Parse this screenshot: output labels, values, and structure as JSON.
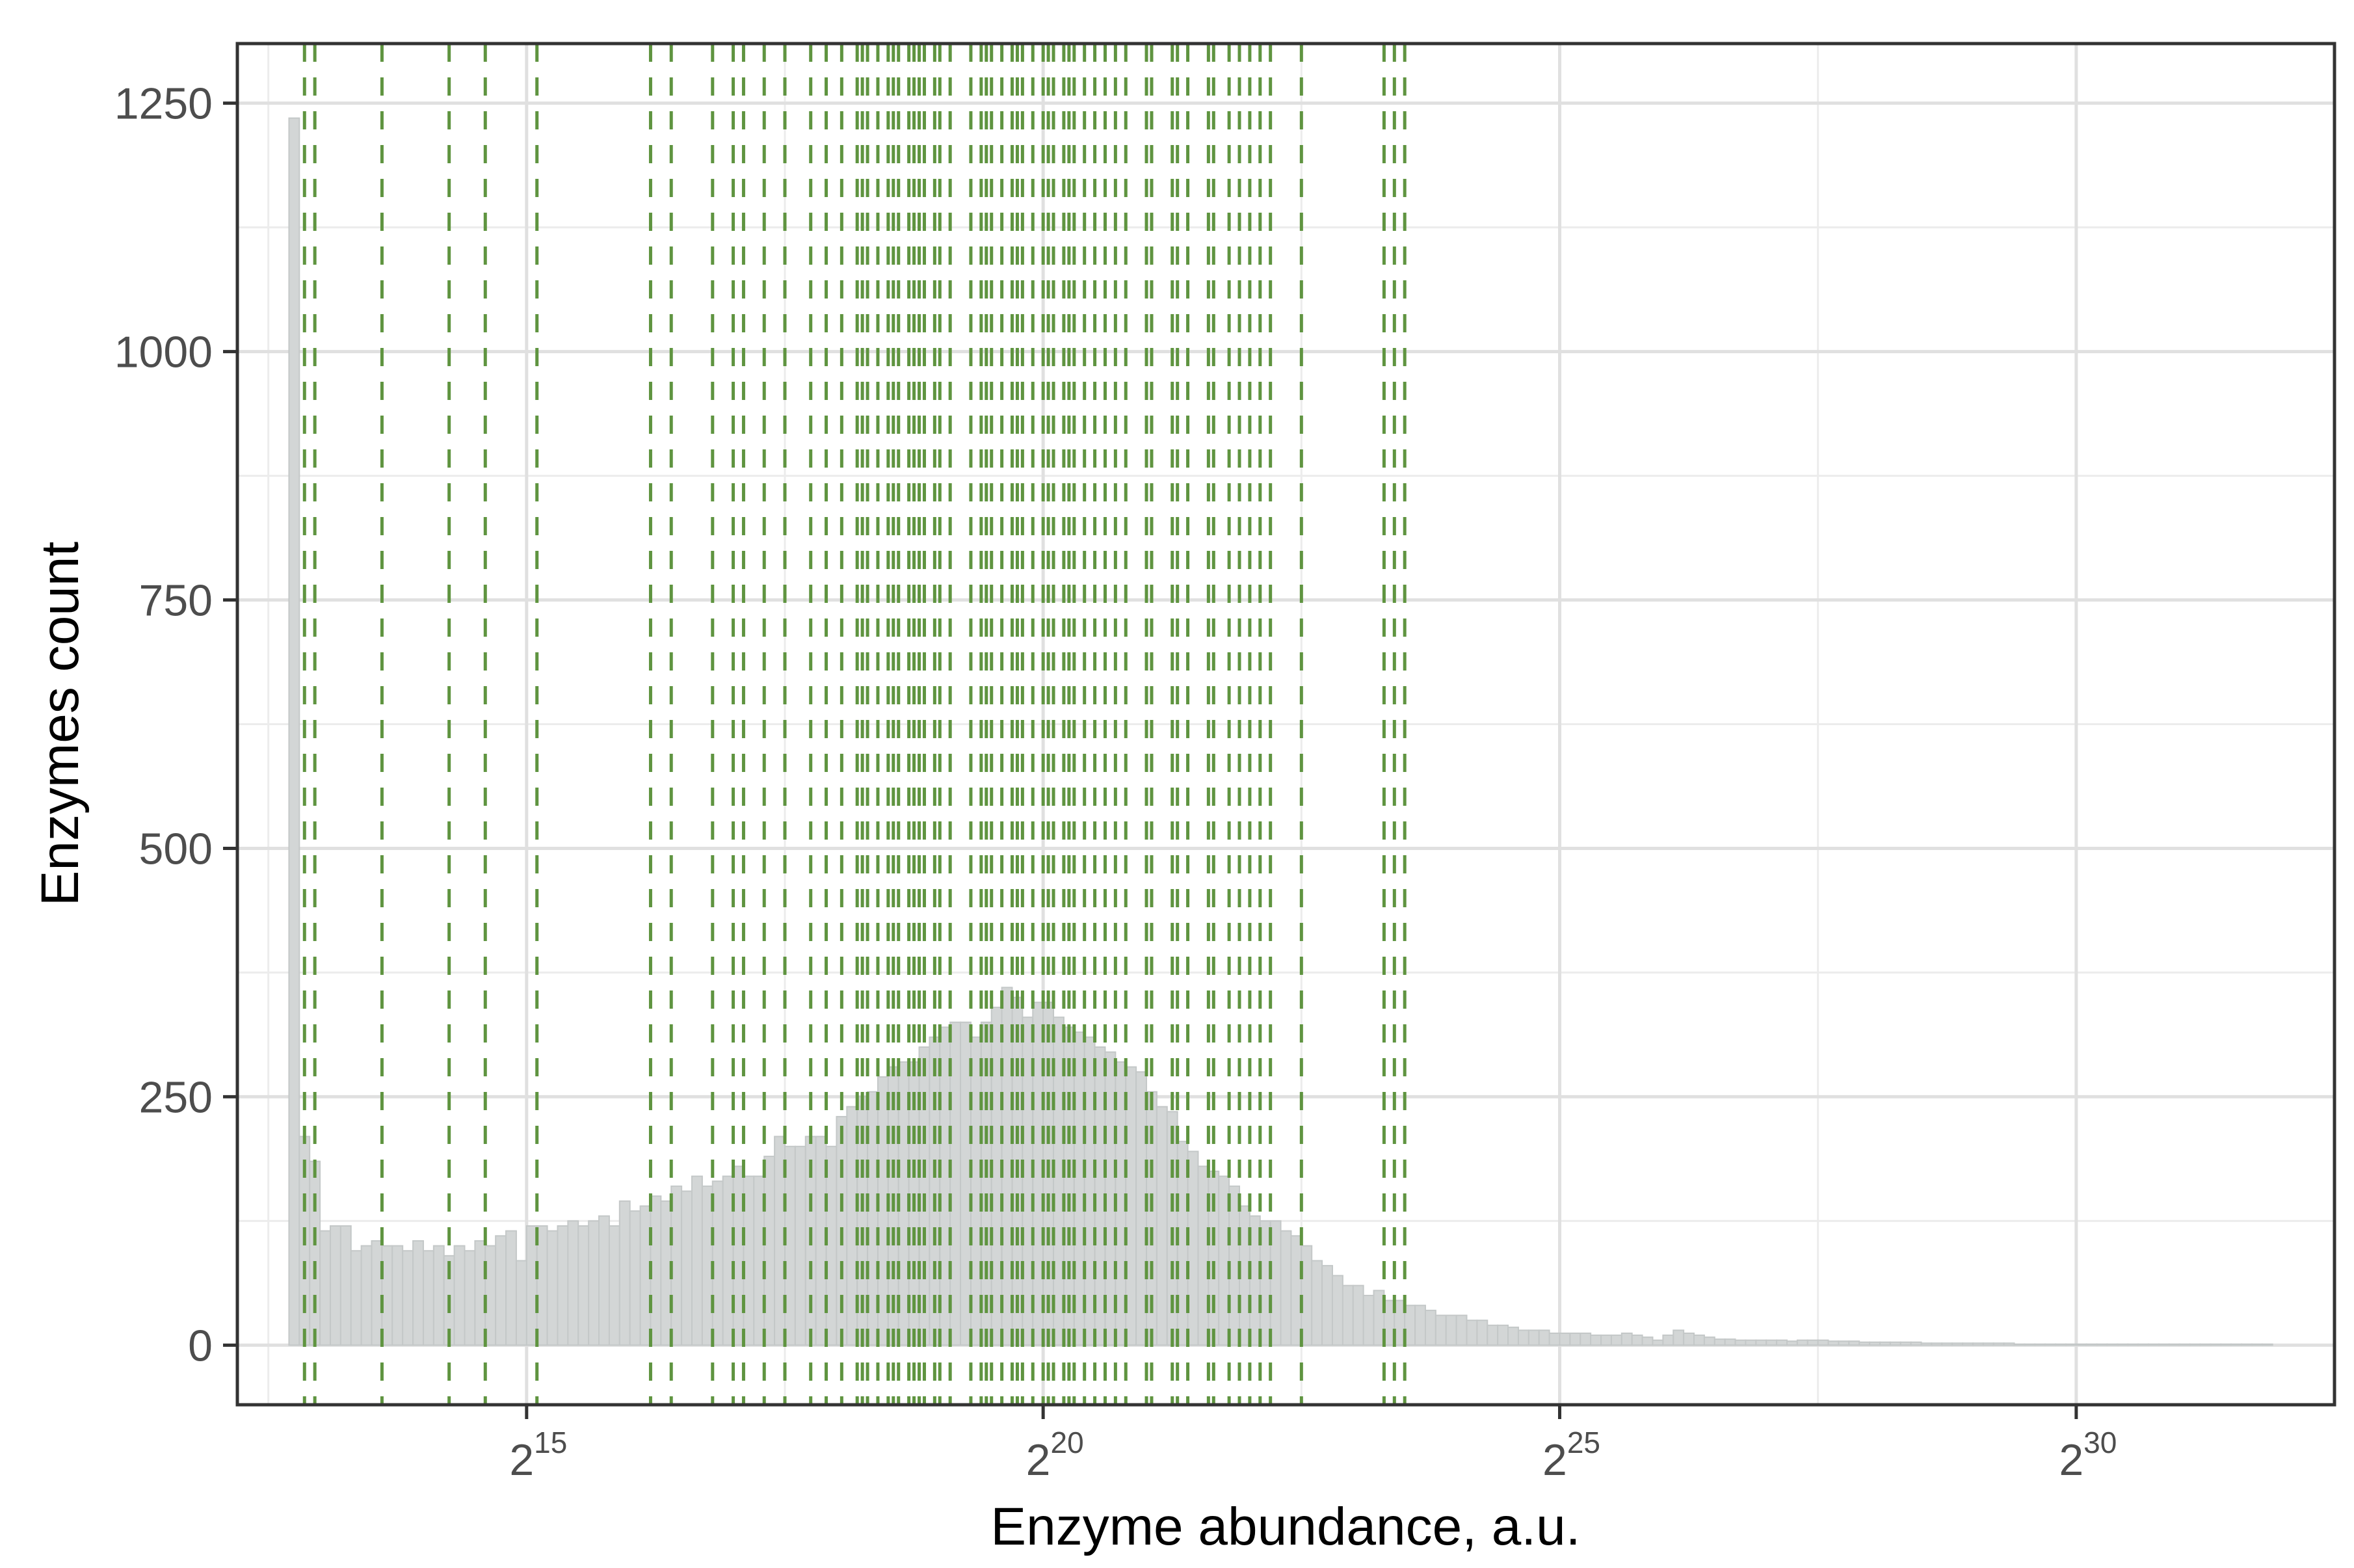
{
  "chart_data": {
    "type": "bar",
    "subtype": "histogram",
    "xlabel": "Enzyme abundance, a.u.",
    "ylabel": "Enzymes count",
    "x_scale": "log2",
    "xlim": [
      12.2,
      32.5
    ],
    "ylim": [
      -60,
      1310
    ],
    "grid": true,
    "x_ticks": [
      {
        "base": "2",
        "exp": "15",
        "value": 15
      },
      {
        "base": "2",
        "exp": "20",
        "value": 20
      },
      {
        "base": "2",
        "exp": "25",
        "value": 25
      },
      {
        "base": "2",
        "exp": "30",
        "value": 30
      }
    ],
    "y_ticks": [
      {
        "label": "0",
        "value": 0
      },
      {
        "label": "250",
        "value": 250
      },
      {
        "label": "500",
        "value": 500
      },
      {
        "label": "750",
        "value": 750
      },
      {
        "label": "1000",
        "value": 1000
      },
      {
        "label": "1250",
        "value": 1250
      }
    ],
    "bin_start_log2": 12.7,
    "bin_width_log2": 0.1,
    "bin_counts": [
      1235,
      210,
      185,
      115,
      120,
      120,
      95,
      100,
      105,
      100,
      100,
      95,
      105,
      95,
      100,
      90,
      100,
      95,
      105,
      100,
      110,
      115,
      85,
      120,
      120,
      115,
      120,
      125,
      120,
      125,
      130,
      120,
      145,
      135,
      140,
      150,
      145,
      160,
      155,
      170,
      160,
      165,
      170,
      180,
      170,
      170,
      190,
      210,
      200,
      200,
      210,
      210,
      200,
      230,
      240,
      250,
      255,
      270,
      280,
      285,
      285,
      300,
      310,
      320,
      325,
      325,
      310,
      325,
      340,
      360,
      350,
      330,
      345,
      345,
      330,
      320,
      315,
      310,
      300,
      295,
      285,
      280,
      275,
      255,
      240,
      235,
      205,
      195,
      180,
      175,
      170,
      160,
      140,
      130,
      125,
      125,
      115,
      110,
      100,
      85,
      80,
      70,
      60,
      60,
      50,
      55,
      45,
      45,
      40,
      40,
      35,
      30,
      30,
      30,
      25,
      25,
      20,
      20,
      18,
      15,
      15,
      15,
      12,
      12,
      12,
      12,
      10,
      10,
      10,
      12,
      10,
      8,
      5,
      10,
      15,
      12,
      10,
      8,
      6,
      6,
      5,
      5,
      5,
      5,
      5,
      4,
      5,
      5,
      5,
      4,
      4,
      4,
      3,
      3,
      3,
      3,
      3,
      3,
      2,
      2,
      2,
      2,
      2,
      2,
      2,
      2,
      2,
      1,
      1,
      1,
      1,
      1,
      1,
      1,
      1,
      1,
      1,
      1,
      1,
      1,
      1,
      1,
      1,
      1,
      1,
      1,
      1,
      1,
      1,
      1,
      1,
      1
    ],
    "vlines_log2": [
      12.85,
      12.95,
      13.6,
      14.25,
      14.6,
      15.1,
      16.2,
      16.4,
      16.8,
      17.0,
      17.1,
      17.3,
      17.5,
      17.75,
      17.9,
      18.05,
      18.2,
      18.25,
      18.3,
      18.4,
      18.5,
      18.55,
      18.6,
      18.7,
      18.75,
      18.8,
      18.85,
      18.95,
      19.0,
      19.1,
      19.3,
      19.4,
      19.45,
      19.5,
      19.6,
      19.7,
      19.75,
      19.8,
      19.9,
      20.0,
      20.05,
      20.1,
      20.2,
      20.25,
      20.3,
      20.4,
      20.5,
      20.6,
      20.7,
      20.8,
      21.0,
      21.05,
      21.25,
      21.3,
      21.4,
      21.6,
      21.65,
      21.8,
      21.9,
      22.0,
      22.1,
      22.2,
      22.5,
      23.3,
      23.4,
      23.5
    ],
    "colors": {
      "bar_fill": "#d3d6d6",
      "bar_outline": "#c4c8c8",
      "vline": "#5f9440",
      "grid_major": "#e0e0e0",
      "grid_minor": "#ececec",
      "frame": "#333333",
      "tick_text": "#4d4d4d",
      "title_text": "#000000"
    }
  }
}
